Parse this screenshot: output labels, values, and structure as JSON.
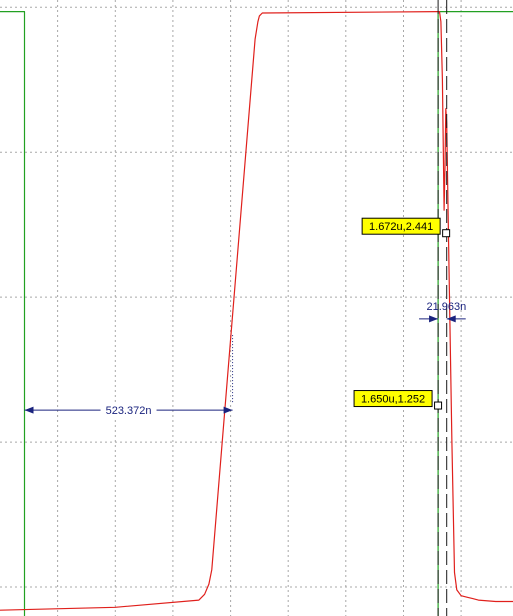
{
  "chart_data": {
    "type": "line",
    "x_unit": "s",
    "y_unit": "V",
    "xlim": [
      0.0,
      1.78e-06
    ],
    "ylim": [
      -0.2,
      4.05
    ],
    "grid": true,
    "series": [
      {
        "color": "#e0201c",
        "x": [
          0.0,
          4e-07,
          6.9e-07,
          7.1e-07,
          7.25e-07,
          7.35e-07,
          8.85e-07,
          8.95e-07,
          9e-07,
          9.1e-07,
          1.52e-06,
          1.525e-06,
          1.53e-06,
          1.535e-06,
          1.541e-06,
          1.544e-06,
          1.547e-06,
          1.55e-06,
          1.558e-06,
          1.568e-06,
          1.577e-06,
          1.585e-06,
          1.6e-06,
          1.62e-06,
          1.64e-06,
          1.66e-06,
          1.72e-06,
          1.78e-06
        ],
        "y": [
          -0.16,
          -0.14,
          -0.09,
          -0.05,
          0.02,
          0.12,
          3.78,
          3.9,
          3.94,
          3.96,
          3.97,
          3.97,
          3.9,
          3.5,
          2.6,
          2.9,
          3.3,
          3.2,
          2.2,
          1.0,
          0.1,
          -0.02,
          -0.06,
          -0.07,
          -0.08,
          -0.09,
          -0.1,
          -0.1
        ]
      },
      {
        "color": "#22a022",
        "x": [
          0.0,
          8.5e-08,
          8.5e-08,
          1.52e-06,
          1.52e-06,
          1.78e-06
        ],
        "y": [
          3.97,
          3.97,
          -0.26,
          -0.26,
          3.97,
          3.97
        ]
      }
    ],
    "cursors": [
      {
        "x": 1.52e-06,
        "style": "dashed"
      },
      {
        "x": 1.55e-06,
        "style": "dashed"
      }
    ],
    "markers": [
      {
        "label": "1.672u,2.441",
        "x": 1.548e-06,
        "y": 2.441
      },
      {
        "label": "1.650u,1.252",
        "x": 1.52e-06,
        "y": 1.252
      }
    ],
    "measurements": [
      {
        "label": "523.372n",
        "x_from": 8.5e-08,
        "x_to": 8.07e-07,
        "y": 1.22,
        "arrows": "inward"
      },
      {
        "label": "21.963n",
        "x_from": 1.52e-06,
        "x_to": 1.55e-06,
        "y": 1.85,
        "arrows": "outward"
      }
    ]
  }
}
